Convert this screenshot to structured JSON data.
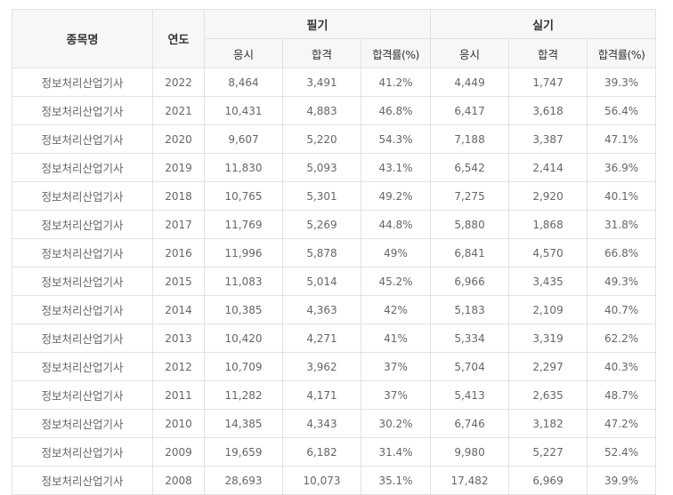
{
  "header": {
    "subject": "종목명",
    "year": "연도",
    "written": "필기",
    "practical": "실기",
    "sub": {
      "apply": "응시",
      "pass": "합격",
      "rate": "합격률(%)"
    }
  },
  "rows": [
    {
      "subject": "정보처리산업기사",
      "year": "2022",
      "w_apply": "8,464",
      "w_pass": "3,491",
      "w_rate": "41.2%",
      "p_apply": "4,449",
      "p_pass": "1,747",
      "p_rate": "39.3%"
    },
    {
      "subject": "정보처리산업기사",
      "year": "2021",
      "w_apply": "10,431",
      "w_pass": "4,883",
      "w_rate": "46.8%",
      "p_apply": "6,417",
      "p_pass": "3,618",
      "p_rate": "56.4%"
    },
    {
      "subject": "정보처리산업기사",
      "year": "2020",
      "w_apply": "9,607",
      "w_pass": "5,220",
      "w_rate": "54.3%",
      "p_apply": "7,188",
      "p_pass": "3,387",
      "p_rate": "47.1%"
    },
    {
      "subject": "정보처리산업기사",
      "year": "2019",
      "w_apply": "11,830",
      "w_pass": "5,093",
      "w_rate": "43.1%",
      "p_apply": "6,542",
      "p_pass": "2,414",
      "p_rate": "36.9%"
    },
    {
      "subject": "정보처리산업기사",
      "year": "2018",
      "w_apply": "10,765",
      "w_pass": "5,301",
      "w_rate": "49.2%",
      "p_apply": "7,275",
      "p_pass": "2,920",
      "p_rate": "40.1%"
    },
    {
      "subject": "정보처리산업기사",
      "year": "2017",
      "w_apply": "11,769",
      "w_pass": "5,269",
      "w_rate": "44.8%",
      "p_apply": "5,880",
      "p_pass": "1,868",
      "p_rate": "31.8%"
    },
    {
      "subject": "정보처리산업기사",
      "year": "2016",
      "w_apply": "11,996",
      "w_pass": "5,878",
      "w_rate": "49%",
      "p_apply": "6,841",
      "p_pass": "4,570",
      "p_rate": "66.8%"
    },
    {
      "subject": "정보처리산업기사",
      "year": "2015",
      "w_apply": "11,083",
      "w_pass": "5,014",
      "w_rate": "45.2%",
      "p_apply": "6,966",
      "p_pass": "3,435",
      "p_rate": "49.3%"
    },
    {
      "subject": "정보처리산업기사",
      "year": "2014",
      "w_apply": "10,385",
      "w_pass": "4,363",
      "w_rate": "42%",
      "p_apply": "5,183",
      "p_pass": "2,109",
      "p_rate": "40.7%"
    },
    {
      "subject": "정보처리산업기사",
      "year": "2013",
      "w_apply": "10,420",
      "w_pass": "4,271",
      "w_rate": "41%",
      "p_apply": "5,334",
      "p_pass": "3,319",
      "p_rate": "62.2%"
    },
    {
      "subject": "정보처리산업기사",
      "year": "2012",
      "w_apply": "10,709",
      "w_pass": "3,962",
      "w_rate": "37%",
      "p_apply": "5,704",
      "p_pass": "2,297",
      "p_rate": "40.3%"
    },
    {
      "subject": "정보처리산업기사",
      "year": "2011",
      "w_apply": "11,282",
      "w_pass": "4,171",
      "w_rate": "37%",
      "p_apply": "5,413",
      "p_pass": "2,635",
      "p_rate": "48.7%"
    },
    {
      "subject": "정보처리산업기사",
      "year": "2010",
      "w_apply": "14,385",
      "w_pass": "4,343",
      "w_rate": "30.2%",
      "p_apply": "6,746",
      "p_pass": "3,182",
      "p_rate": "47.2%"
    },
    {
      "subject": "정보처리산업기사",
      "year": "2009",
      "w_apply": "19,659",
      "w_pass": "6,182",
      "w_rate": "31.4%",
      "p_apply": "9,980",
      "p_pass": "5,227",
      "p_rate": "52.4%"
    },
    {
      "subject": "정보처리산업기사",
      "year": "2008",
      "w_apply": "28,693",
      "w_pass": "10,073",
      "w_rate": "35.1%",
      "p_apply": "17,482",
      "p_pass": "6,969",
      "p_rate": "39.9%"
    }
  ]
}
